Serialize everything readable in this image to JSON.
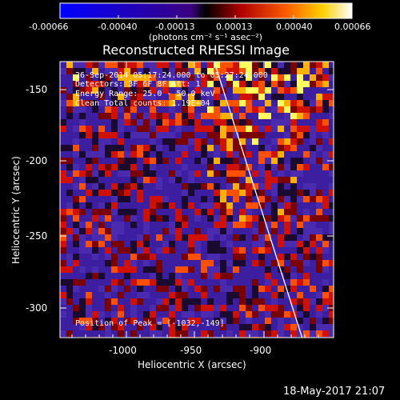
{
  "colorbar": {
    "tick_labels": [
      "-0.00066",
      "-0.00040",
      "-0.00013",
      "0.00013",
      "0.00040",
      "0.00066"
    ],
    "unit_label": "(photons cm⁻² s⁻¹ asec⁻²)",
    "range": [
      -0.00066,
      0.00066
    ]
  },
  "chart_data": {
    "type": "heatmap",
    "title": "Reconstructed RHESSI Image",
    "xlabel": "Heliocentric X (arcsec)",
    "ylabel": "Heliocentric Y (arcsec)",
    "x_ticks": [
      "-1000",
      "-950",
      "-900"
    ],
    "y_ticks": [
      "-150",
      "-200",
      "-250",
      "-300"
    ],
    "xlim": [
      -1043,
      -878
    ],
    "ylim": [
      -324,
      -128
    ],
    "annotations": [
      "26-Sep-2014 05:17:24.000 to 05:27:24.000",
      "Detectors: 3F 6F 8F Att: 1",
      "Energy Range: 25.0 - 50.0 keV",
      "Clean    Total counts: 1.19E+04"
    ],
    "peak_label": "Position of Peak = [-1032,-149]",
    "limb_line": {
      "x": [
        -950,
        -897
      ],
      "y": [
        -128,
        -324
      ]
    },
    "footer_date": "18-May-2017 21:07"
  },
  "colors": {
    "background": "#000000",
    "limb": "#ffffff",
    "text": "#ffffff"
  }
}
